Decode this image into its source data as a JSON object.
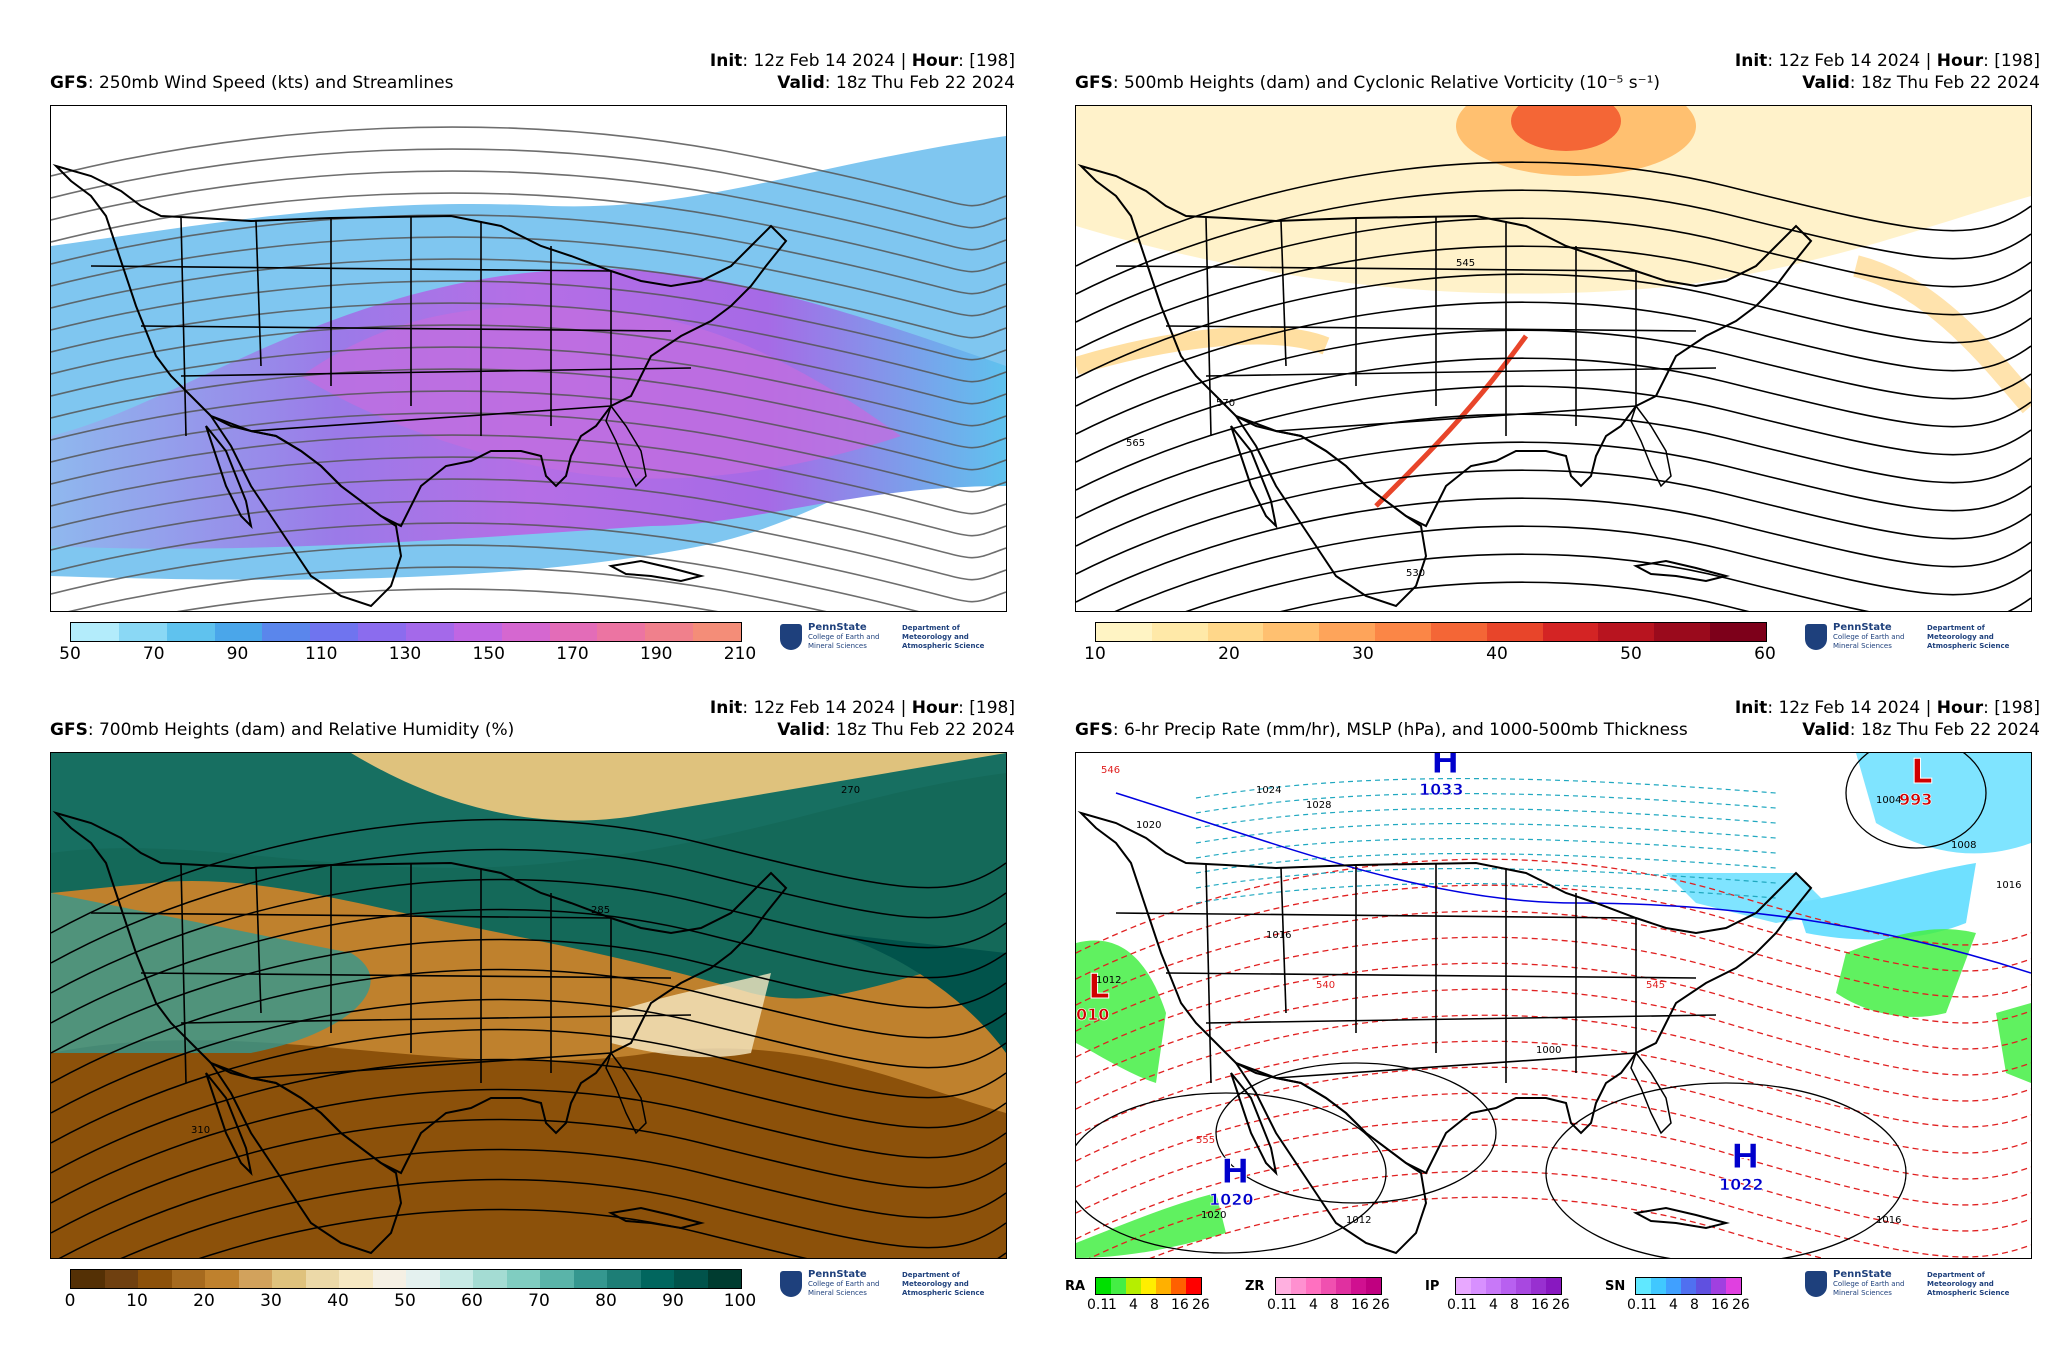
{
  "panels": [
    {
      "model": "GFS",
      "title": ": 250mb Wind Speed (kts) and Streamlines",
      "init_label": "Init",
      "init_value": ": 12z Feb 14 2024 | ",
      "hour_label": "Hour",
      "hour_value": ": [198]",
      "valid_label": "Valid",
      "valid_value": ": 18z Thu Feb 22 2024",
      "colorbar_ticks": [
        "50",
        "70",
        "90",
        "110",
        "130",
        "150",
        "170",
        "190",
        "210"
      ],
      "colorbar_colors": [
        "#b3ecfb",
        "#8ad8f5",
        "#5fc2ee",
        "#4aa6ea",
        "#5a86ec",
        "#6f74ef",
        "#8b6cee",
        "#a469ea",
        "#c066e3",
        "#d567d0",
        "#e36cb8",
        "#ec74a2",
        "#f0808c",
        "#f48d78"
      ]
    },
    {
      "model": "GFS",
      "title": ": 500mb Heights (dam) and Cyclonic Relative Vorticity (10⁻⁵ s⁻¹)",
      "init_label": "Init",
      "init_value": ": 12z Feb 14 2024 | ",
      "hour_label": "Hour",
      "hour_value": ": [198]",
      "valid_label": "Valid",
      "valid_value": ": 18z Thu Feb 22 2024",
      "colorbar_ticks": [
        "10",
        "20",
        "30",
        "40",
        "50",
        "60"
      ],
      "colorbar_colors": [
        "#fff4c4",
        "#ffe9a8",
        "#ffd78a",
        "#ffc070",
        "#fea45a",
        "#fb8646",
        "#f46636",
        "#e8452a",
        "#d42424",
        "#b8141f",
        "#9a0a1c",
        "#7d001a"
      ],
      "contour_labels": [
        "545",
        "565",
        "570",
        "530"
      ]
    },
    {
      "model": "GFS",
      "title": ": 700mb Heights (dam) and Relative Humidity (%)",
      "init_label": "Init",
      "init_value": ": 12z Feb 14 2024 | ",
      "hour_label": "Hour",
      "hour_value": ": [198]",
      "valid_label": "Valid",
      "valid_value": ": 18z Thu Feb 22 2024",
      "colorbar_ticks": [
        "0",
        "10",
        "20",
        "30",
        "40",
        "50",
        "60",
        "70",
        "80",
        "90",
        "100"
      ],
      "colorbar_colors": [
        "#543005",
        "#6f4010",
        "#8c510a",
        "#a66a1e",
        "#bf812d",
        "#d2a25c",
        "#dfc27d",
        "#ecd9a8",
        "#f6e8c3",
        "#f5f0e4",
        "#e4f1ef",
        "#c7eae5",
        "#a4dcd3",
        "#80cdc1",
        "#5ab4a9",
        "#35978f",
        "#1d7e76",
        "#01665e",
        "#01534b",
        "#003c30"
      ],
      "contour_labels": [
        "270",
        "285",
        "310"
      ]
    },
    {
      "model": "GFS",
      "title": ": 6-hr Precip Rate (mm/hr), MSLP (hPa), and 1000-500mb Thickness",
      "init_label": "Init",
      "init_value": ": 12z Feb 14 2024 | ",
      "hour_label": "Hour",
      "hour_value": ": [198]",
      "valid_label": "Valid",
      "valid_value": ": 18z Thu Feb 22 2024",
      "pressure_centers": [
        {
          "type": "H",
          "value": "1033"
        },
        {
          "type": "L",
          "value": "993"
        },
        {
          "type": "L",
          "value": "010"
        },
        {
          "type": "H",
          "value": "1020"
        },
        {
          "type": "H",
          "value": "1022"
        }
      ],
      "isobar_labels": [
        "1024",
        "1028",
        "1020",
        "1016",
        "1012",
        "1000",
        "1004",
        "1008",
        "1016",
        "1012",
        "1020",
        "1016"
      ],
      "thickness_labels": [
        "546",
        "540",
        "555",
        "545"
      ],
      "precip_legends": [
        {
          "label": "RA",
          "ticks": [
            "0.1",
            "1",
            "4",
            "8",
            "16",
            "26"
          ],
          "colors": [
            "#00e000",
            "#44ee44",
            "#b6ee00",
            "#ffee00",
            "#ffb000",
            "#ff6000",
            "#ff0000"
          ]
        },
        {
          "label": "ZR",
          "ticks": [
            "0.1",
            "1",
            "4",
            "8",
            "16",
            "26"
          ],
          "colors": [
            "#ffb0e0",
            "#ff90d0",
            "#ff70c0",
            "#f050b0",
            "#e030a0",
            "#d01090",
            "#c00080"
          ]
        },
        {
          "label": "IP",
          "ticks": [
            "0.1",
            "1",
            "4",
            "8",
            "16",
            "26"
          ],
          "colors": [
            "#e8a8ff",
            "#d890ff",
            "#c878f8",
            "#b860f0",
            "#a848e0",
            "#9830d0",
            "#8818c0"
          ]
        },
        {
          "label": "SN",
          "ticks": [
            "0.1",
            "1",
            "4",
            "8",
            "16",
            "26"
          ],
          "colors": [
            "#60e8ff",
            "#40c8ff",
            "#40a0ff",
            "#5070f0",
            "#6050e0",
            "#a040e0",
            "#e040e0"
          ]
        }
      ]
    }
  ],
  "logo": {
    "name": "PennState",
    "college": "College of Earth and Mineral Sciences",
    "dept": "Department of Meteorology and Atmospheric Science"
  }
}
